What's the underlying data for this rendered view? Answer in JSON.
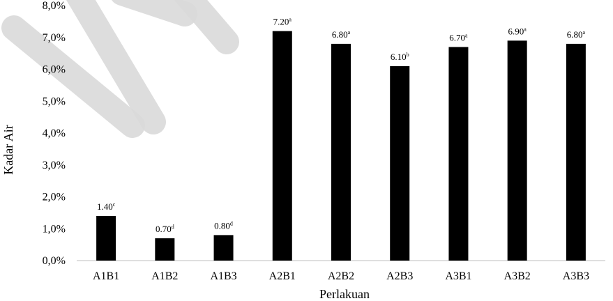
{
  "chart_data": {
    "type": "bar",
    "title": "",
    "xlabel": "Perlakuan",
    "ylabel": "Kadar Air",
    "categories": [
      "A1B1",
      "A1B2",
      "A1B3",
      "A2B1",
      "A2B2",
      "A2B3",
      "A3B1",
      "A3B2",
      "A3B3"
    ],
    "values": [
      1.4,
      0.7,
      0.8,
      7.2,
      6.8,
      6.1,
      6.7,
      6.9,
      6.8
    ],
    "data_labels": [
      {
        "value": "1.40",
        "letter": "c"
      },
      {
        "value": "0.70",
        "letter": "d"
      },
      {
        "value": "0.80",
        "letter": "d"
      },
      {
        "value": "7.20",
        "letter": "a"
      },
      {
        "value": "6.80",
        "letter": "a"
      },
      {
        "value": "6.10",
        "letter": "b"
      },
      {
        "value": "6.70",
        "letter": "a"
      },
      {
        "value": "6.90",
        "letter": "a"
      },
      {
        "value": "6.80",
        "letter": "a"
      }
    ],
    "y_ticks": [
      "0,0%",
      "1,0%",
      "2,0%",
      "3,0%",
      "4,0%",
      "5,0%",
      "6,0%",
      "7,0%",
      "8,0%"
    ],
    "ylim": [
      0,
      8
    ],
    "grid": false,
    "legend": "none",
    "bar_color": "#000000",
    "watermark_color": "#d9d9d9"
  }
}
